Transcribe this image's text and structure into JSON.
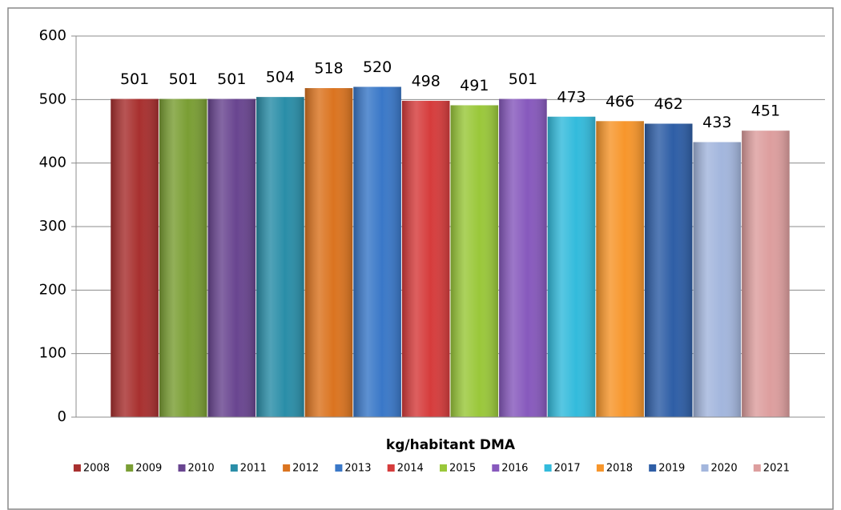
{
  "chart_data": {
    "type": "bar",
    "categories": [
      "kg/habitant DMA"
    ],
    "series": [
      {
        "name": "2008",
        "color": "#a8302f",
        "values": [
          501
        ]
      },
      {
        "name": "2009",
        "color": "#7a9e34",
        "values": [
          501
        ]
      },
      {
        "name": "2010",
        "color": "#694590",
        "values": [
          501
        ]
      },
      {
        "name": "2011",
        "color": "#2a8ea8",
        "values": [
          504
        ]
      },
      {
        "name": "2012",
        "color": "#db7420",
        "values": [
          518
        ]
      },
      {
        "name": "2013",
        "color": "#3a78c8",
        "values": [
          520
        ]
      },
      {
        "name": "2014",
        "color": "#d63c3c",
        "values": [
          498
        ]
      },
      {
        "name": "2015",
        "color": "#9ac83a",
        "values": [
          491
        ]
      },
      {
        "name": "2016",
        "color": "#8759bd",
        "values": [
          501
        ]
      },
      {
        "name": "2017",
        "color": "#33bbdc",
        "values": [
          473
        ]
      },
      {
        "name": "2018",
        "color": "#f7962b",
        "values": [
          466
        ]
      },
      {
        "name": "2019",
        "color": "#2e5ea6",
        "values": [
          462
        ]
      },
      {
        "name": "2020",
        "color": "#a3b6dd",
        "values": [
          433
        ]
      },
      {
        "name": "2021",
        "color": "#dd9e9e",
        "values": [
          451
        ]
      }
    ],
    "ylim": [
      0,
      600
    ],
    "yticks": [
      0,
      100,
      200,
      300,
      400,
      500,
      600
    ],
    "grid": true,
    "legend": "bottom"
  }
}
